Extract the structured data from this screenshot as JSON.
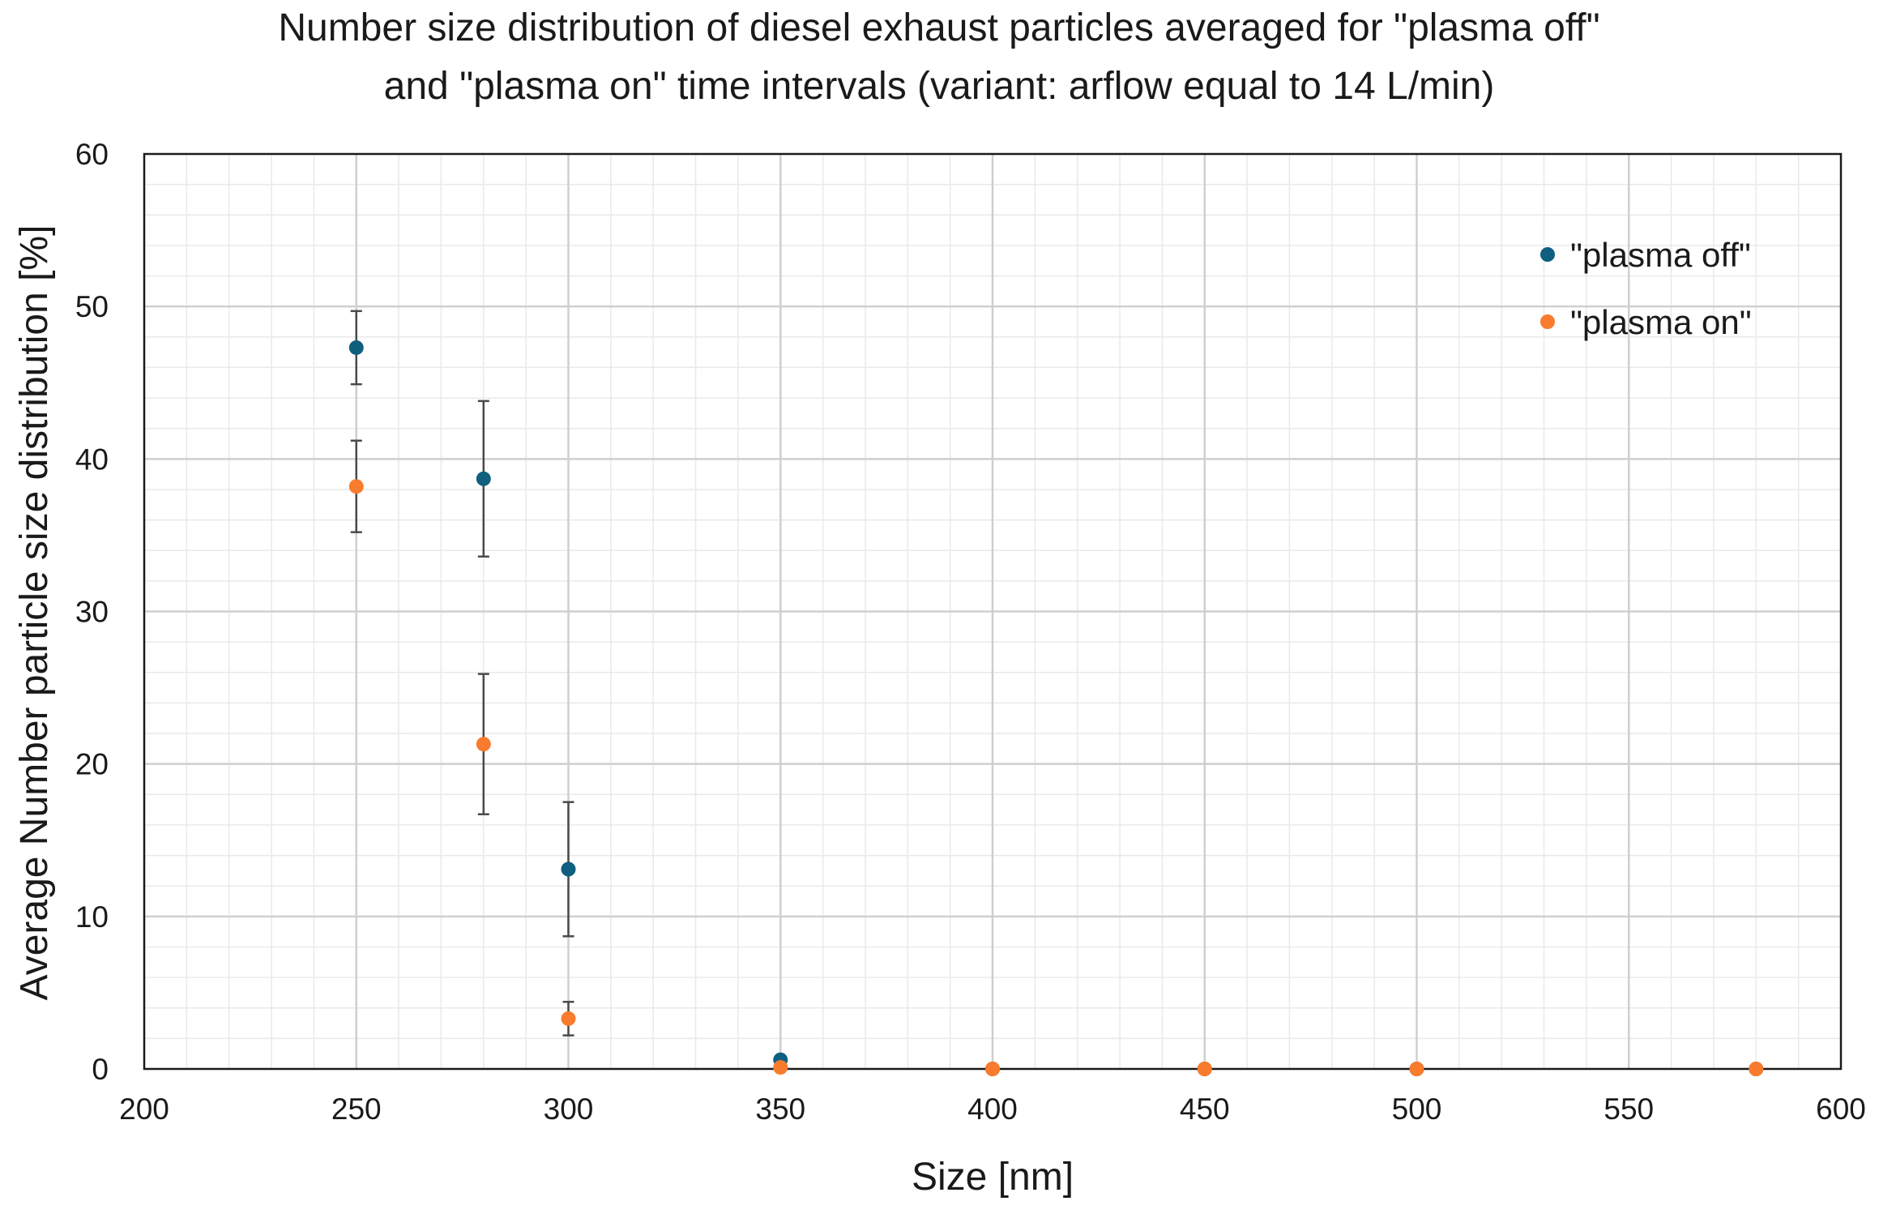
{
  "chart_data": {
    "type": "scatter",
    "title_lines": [
      "Number size distribution of diesel exhaust particles averaged for \"plasma off\"",
      "and \"plasma on\"  time intervals (variant: arflow equal to 14 L/min)"
    ],
    "xlabel": "Size [nm]",
    "ylabel": "Average Number particle size distribution [%]",
    "xlim": [
      200,
      600
    ],
    "ylim": [
      0,
      60
    ],
    "x_ticks": [
      200,
      250,
      300,
      350,
      400,
      450,
      500,
      550,
      600
    ],
    "y_ticks": [
      0,
      10,
      20,
      30,
      40,
      50,
      60
    ],
    "x_minor_step": 10,
    "y_minor_step": 2,
    "grid": true,
    "legend_position": "top-right",
    "series": [
      {
        "name": "\"plasma off\"",
        "color": "#0f5f7f",
        "x": [
          250,
          280,
          300,
          350,
          400,
          450,
          500,
          580
        ],
        "y": [
          47.3,
          38.7,
          13.1,
          0.6,
          0.0,
          0.0,
          0.0,
          0.0
        ],
        "yerr": [
          2.4,
          5.1,
          4.4,
          0,
          0,
          0,
          0,
          0
        ]
      },
      {
        "name": "\"plasma on\"",
        "color": "#f97b2d",
        "x": [
          250,
          280,
          300,
          350,
          400,
          450,
          500,
          580
        ],
        "y": [
          38.2,
          21.3,
          3.3,
          0.1,
          0.0,
          0.0,
          0.0,
          0.0
        ],
        "yerr": [
          3.0,
          4.6,
          1.1,
          0,
          0,
          0,
          0,
          0
        ]
      }
    ]
  }
}
